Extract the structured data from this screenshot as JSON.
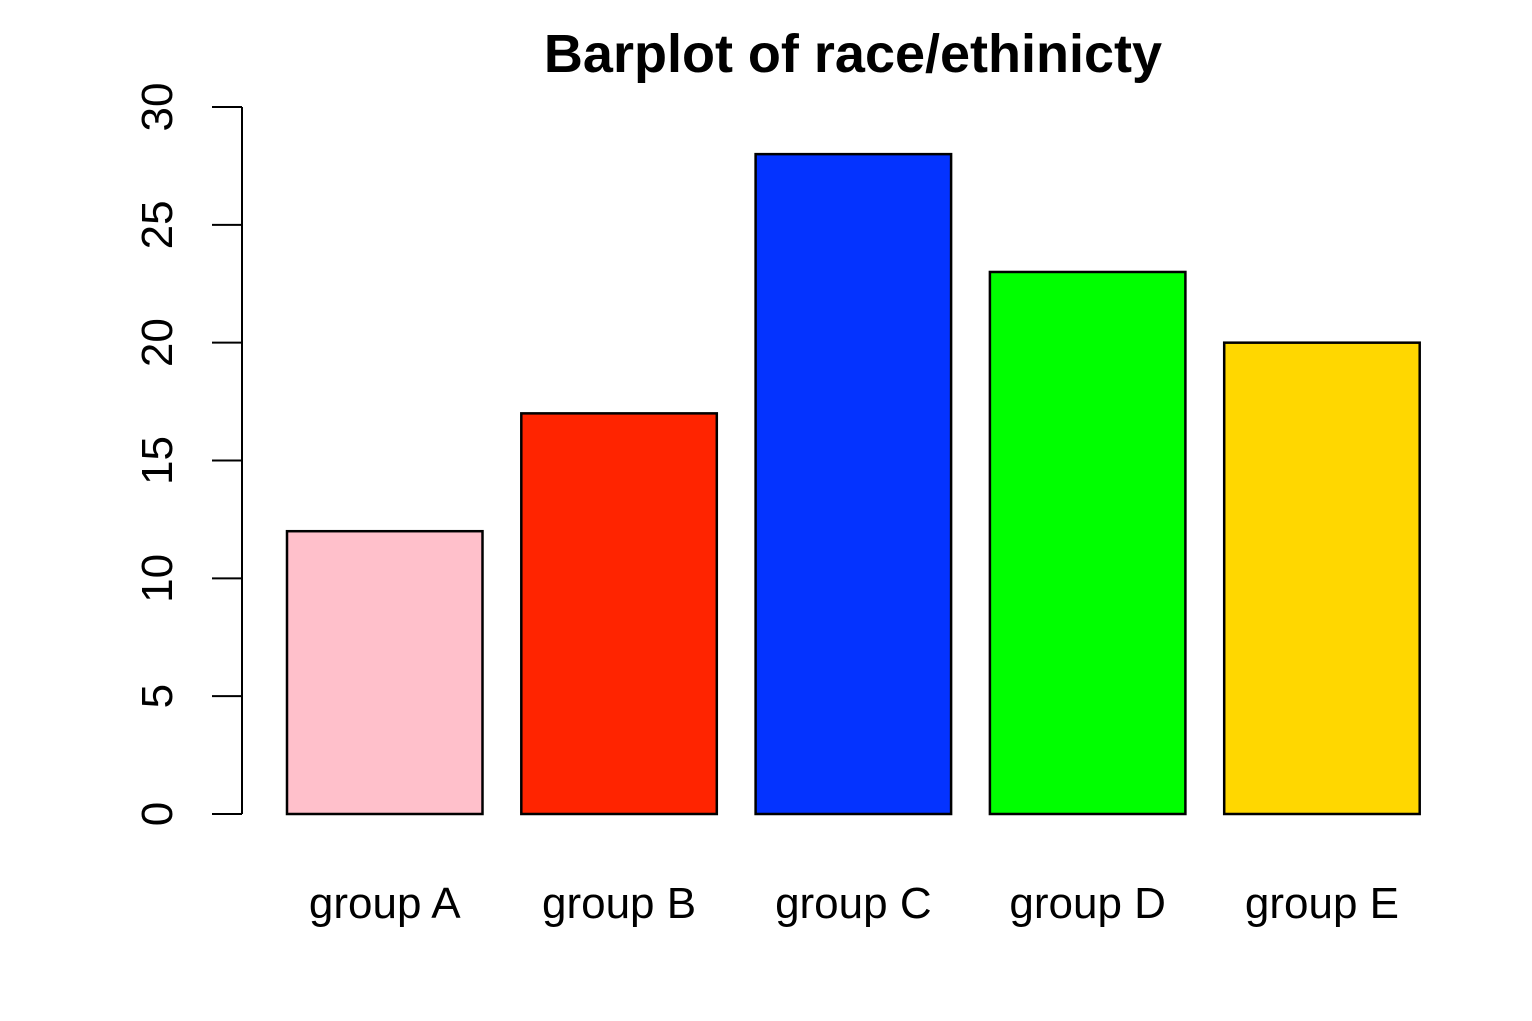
{
  "chart_data": {
    "type": "bar",
    "title": "Barplot of race/ethinicty",
    "xlabel": "",
    "ylabel": "",
    "categories": [
      "group A",
      "group B",
      "group C",
      "group D",
      "group E"
    ],
    "values": [
      12,
      17,
      28,
      23,
      20
    ],
    "colors": [
      "#FFC0CB",
      "#FF2400",
      "#0433FF",
      "#00FF00",
      "#FFD700"
    ],
    "ylim": [
      0,
      30
    ],
    "yticks": [
      0,
      5,
      10,
      15,
      20,
      25,
      30
    ],
    "ytick_labels": [
      "0",
      "5",
      "10",
      "15",
      "20",
      "25",
      "30"
    ],
    "grid": false,
    "legend": "none"
  }
}
